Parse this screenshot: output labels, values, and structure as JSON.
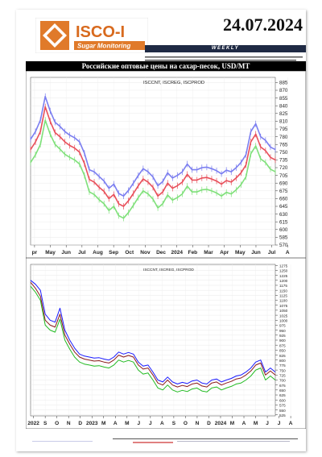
{
  "header": {
    "logo_text": "ISCO-I",
    "logo_sub": "Sugar Monitoring",
    "date": "24.07.2024",
    "weekly": "WEEKLY"
  },
  "banner": "Российские оптовые цены на сахар-песок, USD/MT",
  "colors": {
    "iscent": "#7b7ef0",
    "isceg": "#e84f5a",
    "iscprod": "#7fe07a",
    "iscent_long": "#1a1aff",
    "isceg_long": "#8b1a1a",
    "iscprod_long": "#22bb22",
    "banner": "#000000",
    "logo_orange": "#e07a2a"
  },
  "chart_data": [
    {
      "type": "line",
      "legend": "ISCCNT, ISCREG, ISCPROD",
      "ylim": [
        570,
        895
      ],
      "y_ticks": [
        885,
        870,
        855,
        840,
        825,
        810,
        795,
        780,
        765,
        750,
        735,
        720,
        705,
        690,
        675,
        660,
        645,
        630,
        615,
        600,
        585,
        570
      ],
      "x_tick_labels": [
        "pr",
        "May",
        "Jun",
        "Jul",
        "Aug",
        "Sep",
        "Oct",
        "Nov",
        "Dec",
        "2024",
        "Feb",
        "Mar",
        "Apr",
        "May",
        "Jun",
        "Jul",
        "A"
      ],
      "series": [
        {
          "name": "ISCCNT",
          "x": [
            0,
            2,
            4,
            6,
            8,
            10,
            12,
            14,
            16,
            18,
            20,
            22,
            24,
            26,
            28,
            30,
            32,
            34,
            36,
            38,
            40,
            42,
            44,
            46,
            48,
            50,
            52,
            54,
            56,
            58,
            60,
            62,
            64,
            66,
            68,
            70,
            72,
            74,
            76,
            78,
            80,
            82,
            84,
            86,
            88,
            90,
            92,
            94,
            96,
            98,
            100
          ],
          "values": [
            775,
            790,
            812,
            858,
            830,
            808,
            800,
            790,
            783,
            778,
            770,
            748,
            716,
            712,
            703,
            694,
            680,
            688,
            670,
            665,
            676,
            690,
            705,
            718,
            712,
            702,
            685,
            693,
            710,
            700,
            705,
            712,
            727,
            716,
            716,
            720,
            721,
            718,
            714,
            708,
            715,
            712,
            720,
            730,
            745,
            790,
            805,
            780,
            773,
            760,
            755
          ]
        },
        {
          "name": "ISCREG",
          "x": [
            0,
            2,
            4,
            6,
            8,
            10,
            12,
            14,
            16,
            18,
            20,
            22,
            24,
            26,
            28,
            30,
            32,
            34,
            36,
            38,
            40,
            42,
            44,
            46,
            48,
            50,
            52,
            54,
            56,
            58,
            60,
            62,
            64,
            66,
            68,
            70,
            72,
            74,
            76,
            78,
            80,
            82,
            84,
            86,
            88,
            90,
            92,
            94,
            96,
            98,
            100
          ],
          "values": [
            755,
            770,
            790,
            838,
            810,
            788,
            780,
            770,
            763,
            758,
            750,
            728,
            697,
            692,
            682,
            674,
            660,
            668,
            650,
            645,
            656,
            670,
            685,
            698,
            692,
            682,
            665,
            673,
            690,
            680,
            685,
            692,
            707,
            696,
            696,
            700,
            701,
            698,
            694,
            688,
            695,
            692,
            700,
            710,
            725,
            770,
            785,
            760,
            753,
            740,
            735
          ]
        },
        {
          "name": "ISCPROD",
          "x": [
            0,
            2,
            4,
            6,
            8,
            10,
            12,
            14,
            16,
            18,
            20,
            22,
            24,
            26,
            28,
            30,
            32,
            34,
            36,
            38,
            40,
            42,
            44,
            46,
            48,
            50,
            52,
            54,
            56,
            58,
            60,
            62,
            64,
            66,
            68,
            70,
            72,
            74,
            76,
            78,
            80,
            82,
            84,
            86,
            88,
            90,
            92,
            94,
            96,
            98,
            100
          ],
          "values": [
            730,
            745,
            765,
            812,
            785,
            765,
            756,
            746,
            740,
            735,
            727,
            705,
            673,
            668,
            658,
            650,
            637,
            645,
            627,
            622,
            633,
            647,
            662,
            675,
            669,
            659,
            642,
            650,
            667,
            657,
            662,
            669,
            684,
            673,
            673,
            677,
            678,
            675,
            671,
            665,
            672,
            669,
            677,
            687,
            702,
            747,
            762,
            737,
            730,
            717,
            712
          ]
        }
      ]
    },
    {
      "type": "line",
      "legend": "ISCCNT, ISCREG, ISCPROD",
      "ylim": [
        520,
        1280
      ],
      "y_ticks": [
        1275,
        1250,
        1225,
        1200,
        1175,
        1150,
        1125,
        1100,
        1075,
        1050,
        1025,
        1000,
        975,
        950,
        925,
        900,
        875,
        850,
        825,
        800,
        775,
        750,
        725,
        700,
        675,
        650,
        625,
        600,
        575,
        550,
        525
      ],
      "x_tick_labels": [
        "2022",
        "S",
        "O",
        "N",
        "D",
        "2023",
        "M",
        "A",
        "M",
        "J",
        "J",
        "A",
        "S",
        "O",
        "N",
        "D",
        "2024",
        "M",
        "A",
        "M",
        "J",
        "J",
        "A"
      ],
      "series": [
        {
          "name": "ISCCNT",
          "x": [
            0,
            2,
            4,
            6,
            8,
            10,
            12,
            14,
            16,
            18,
            20,
            22,
            24,
            26,
            28,
            30,
            32,
            34,
            36,
            38,
            40,
            42,
            44,
            46,
            48,
            50,
            52,
            54,
            56,
            58,
            60,
            62,
            64,
            66,
            68,
            70,
            72,
            74,
            76,
            78,
            80,
            82,
            84,
            86,
            88,
            90,
            92,
            94,
            96,
            98,
            100
          ],
          "values": [
            1200,
            1180,
            1150,
            1030,
            1000,
            990,
            1060,
            950,
            900,
            860,
            830,
            820,
            815,
            810,
            812,
            805,
            800,
            815,
            840,
            830,
            838,
            830,
            790,
            770,
            775,
            740,
            700,
            690,
            715,
            690,
            680,
            688,
            682,
            695,
            700,
            685,
            680,
            700,
            705,
            690,
            700,
            708,
            720,
            725,
            740,
            760,
            790,
            800,
            740,
            760,
            740
          ]
        },
        {
          "name": "ISCREG",
          "x": [
            0,
            2,
            4,
            6,
            8,
            10,
            12,
            14,
            16,
            18,
            20,
            22,
            24,
            26,
            28,
            30,
            32,
            34,
            36,
            38,
            40,
            42,
            44,
            46,
            48,
            50,
            52,
            54,
            56,
            58,
            60,
            62,
            64,
            66,
            68,
            70,
            72,
            74,
            76,
            78,
            80,
            82,
            84,
            86,
            88,
            90,
            92,
            94,
            96,
            98,
            100
          ],
          "values": [
            1190,
            1160,
            1120,
            1000,
            975,
            965,
            1030,
            925,
            880,
            840,
            815,
            805,
            800,
            795,
            797,
            790,
            785,
            800,
            825,
            815,
            823,
            815,
            775,
            755,
            760,
            725,
            685,
            675,
            700,
            675,
            665,
            673,
            667,
            680,
            685,
            670,
            665,
            685,
            690,
            675,
            685,
            693,
            705,
            710,
            725,
            745,
            775,
            785,
            725,
            745,
            725
          ]
        },
        {
          "name": "ISCPROD",
          "x": [
            0,
            2,
            4,
            6,
            8,
            10,
            12,
            14,
            16,
            18,
            20,
            22,
            24,
            26,
            28,
            30,
            32,
            34,
            36,
            38,
            40,
            42,
            44,
            46,
            48,
            50,
            52,
            54,
            56,
            58,
            60,
            62,
            64,
            66,
            68,
            70,
            72,
            74,
            76,
            78,
            80,
            82,
            84,
            86,
            88,
            90,
            92,
            94,
            96,
            98,
            100
          ],
          "values": [
            1170,
            1140,
            1100,
            975,
            950,
            940,
            1005,
            900,
            855,
            815,
            790,
            780,
            775,
            770,
            772,
            765,
            760,
            775,
            800,
            790,
            798,
            790,
            750,
            730,
            735,
            700,
            660,
            650,
            675,
            650,
            640,
            648,
            642,
            655,
            660,
            645,
            640,
            660,
            665,
            650,
            660,
            668,
            680,
            685,
            700,
            720,
            750,
            760,
            700,
            720,
            700
          ]
        }
      ]
    }
  ]
}
